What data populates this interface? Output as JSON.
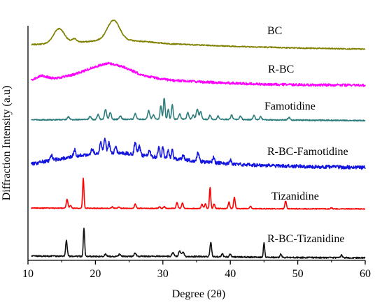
{
  "chart_data": {
    "type": "line",
    "xlabel": "Degree (2θ)",
    "ylabel": "Diffraction Intensity (a.u)",
    "xlim": [
      10,
      60
    ],
    "xticks": [
      10,
      20,
      30,
      40,
      50,
      60
    ],
    "grid": false,
    "series": [
      {
        "name": "BC",
        "color": "#808000",
        "baseline": 0.5,
        "background": [
          [
            10.5,
            2.0
          ],
          [
            14,
            2.6
          ],
          [
            19,
            3.4
          ],
          [
            22,
            4.5
          ],
          [
            26,
            3.7
          ],
          [
            31,
            2.4
          ],
          [
            40,
            1.3
          ],
          [
            50,
            0.5
          ],
          [
            60,
            0.0
          ]
        ],
        "peaks": [
          [
            14.6,
            6.5,
            0.8
          ],
          [
            16.9,
            1.5,
            0.35
          ],
          [
            22.7,
            8.5,
            0.9
          ]
        ],
        "noise": 0.25
      },
      {
        "name": "R-BC",
        "color": "#ff00ff",
        "baseline": 0.0,
        "background": [
          [
            10.5,
            3.0
          ],
          [
            12,
            4.8
          ],
          [
            14,
            3.6
          ],
          [
            17,
            5.5
          ],
          [
            20,
            9.0
          ],
          [
            22,
            10.5
          ],
          [
            24,
            9.0
          ],
          [
            27,
            5.0
          ],
          [
            31,
            2.8
          ],
          [
            38,
            1.8
          ],
          [
            45,
            1.0
          ],
          [
            52,
            0.7
          ],
          [
            60,
            0.6
          ]
        ],
        "peaks": [],
        "noise": 0.55
      },
      {
        "name": "Famotidine",
        "color": "#2e7d7d",
        "baseline": 0.0,
        "background": [
          [
            10.5,
            0.7
          ],
          [
            20,
            0.9
          ],
          [
            30,
            1.0
          ],
          [
            40,
            0.9
          ],
          [
            50,
            0.6
          ],
          [
            60,
            0.4
          ]
        ],
        "peaks": [
          [
            16.0,
            1.2,
            0.15
          ],
          [
            19.2,
            1.3,
            0.15
          ],
          [
            20.4,
            2.2,
            0.15
          ],
          [
            21.5,
            4.5,
            0.15
          ],
          [
            22.2,
            3.0,
            0.15
          ],
          [
            23.7,
            1.5,
            0.15
          ],
          [
            25.9,
            2.5,
            0.15
          ],
          [
            27.9,
            3.8,
            0.15
          ],
          [
            28.6,
            2.0,
            0.15
          ],
          [
            29.7,
            6.0,
            0.12
          ],
          [
            30.2,
            9.5,
            0.12
          ],
          [
            30.8,
            4.5,
            0.12
          ],
          [
            31.4,
            6.5,
            0.12
          ],
          [
            32.5,
            2.5,
            0.15
          ],
          [
            33.7,
            3.0,
            0.15
          ],
          [
            34.5,
            1.8,
            0.15
          ],
          [
            35.1,
            4.5,
            0.15
          ],
          [
            35.6,
            3.5,
            0.15
          ],
          [
            37.0,
            1.8,
            0.15
          ],
          [
            38.2,
            1.5,
            0.15
          ],
          [
            40.2,
            1.9,
            0.15
          ],
          [
            41.5,
            1.5,
            0.15
          ],
          [
            43.5,
            1.9,
            0.15
          ],
          [
            44.5,
            1.4,
            0.15
          ],
          [
            48.7,
            1.2,
            0.15
          ]
        ],
        "noise": 0.25
      },
      {
        "name": "R-BC-Famotidine",
        "color": "#1515e0",
        "baseline": 0.0,
        "background": [
          [
            10.5,
            1.5
          ],
          [
            12,
            2.5
          ],
          [
            16,
            4.5
          ],
          [
            20,
            6.5
          ],
          [
            24,
            6.5
          ],
          [
            28,
            5.0
          ],
          [
            32,
            3.8
          ],
          [
            38,
            2.0
          ],
          [
            45,
            0.9
          ],
          [
            50,
            0.5
          ],
          [
            60,
            0.0
          ]
        ],
        "peaks": [
          [
            13.5,
            2.0,
            0.15
          ],
          [
            16.9,
            3.0,
            0.15
          ],
          [
            19.5,
            2.0,
            0.15
          ],
          [
            20.8,
            5.0,
            0.15
          ],
          [
            21.4,
            6.5,
            0.15
          ],
          [
            22.0,
            4.5,
            0.15
          ],
          [
            23.0,
            2.5,
            0.15
          ],
          [
            25.9,
            5.5,
            0.15
          ],
          [
            26.5,
            4.0,
            0.15
          ],
          [
            28.0,
            3.0,
            0.15
          ],
          [
            29.4,
            4.5,
            0.15
          ],
          [
            30.0,
            5.0,
            0.12
          ],
          [
            30.8,
            4.0,
            0.12
          ],
          [
            31.4,
            4.5,
            0.12
          ],
          [
            33.0,
            2.0,
            0.15
          ],
          [
            35.2,
            3.8,
            0.15
          ],
          [
            37.5,
            2.2,
            0.15
          ],
          [
            40.0,
            1.5,
            0.15
          ]
        ],
        "noise": 0.8
      },
      {
        "name": "Tizanidine",
        "color": "#ff0000",
        "baseline": 0.0,
        "background": [
          [
            10.5,
            0.6
          ],
          [
            20,
            0.5
          ],
          [
            30,
            0.45
          ],
          [
            40,
            0.35
          ],
          [
            50,
            0.25
          ],
          [
            60,
            0.2
          ]
        ],
        "peaks": [
          [
            15.8,
            4.0,
            0.12
          ],
          [
            16.3,
            1.2,
            0.12
          ],
          [
            18.2,
            13.5,
            0.1
          ],
          [
            22.5,
            0.7,
            0.12
          ],
          [
            23.5,
            0.6,
            0.12
          ],
          [
            25.9,
            2.0,
            0.12
          ],
          [
            29.5,
            0.8,
            0.12
          ],
          [
            30.2,
            0.8,
            0.12
          ],
          [
            32.1,
            2.7,
            0.12
          ],
          [
            32.9,
            2.5,
            0.12
          ],
          [
            35.8,
            2.0,
            0.12
          ],
          [
            36.3,
            2.2,
            0.12
          ],
          [
            37.0,
            9.5,
            0.1
          ],
          [
            37.6,
            2.0,
            0.12
          ],
          [
            39.8,
            3.0,
            0.12
          ],
          [
            40.6,
            5.0,
            0.12
          ],
          [
            43.0,
            1.0,
            0.12
          ],
          [
            48.2,
            3.5,
            0.12
          ],
          [
            55.0,
            0.6,
            0.12
          ]
        ],
        "noise": 0.18
      },
      {
        "name": "R-BC-Tizanidine",
        "color": "#111111",
        "baseline": 0.0,
        "background": [
          [
            10.5,
            1.0
          ],
          [
            20,
            0.8
          ],
          [
            30,
            0.9
          ],
          [
            40,
            0.6
          ],
          [
            50,
            0.3
          ],
          [
            60,
            0.2
          ]
        ],
        "peaks": [
          [
            15.7,
            7.0,
            0.12
          ],
          [
            18.3,
            12.5,
            0.1
          ],
          [
            21.5,
            1.0,
            0.15
          ],
          [
            23.6,
            1.0,
            0.15
          ],
          [
            25.9,
            1.5,
            0.15
          ],
          [
            31.5,
            1.5,
            0.15
          ],
          [
            32.5,
            2.5,
            0.15
          ],
          [
            33.0,
            2.0,
            0.15
          ],
          [
            37.1,
            6.5,
            0.12
          ],
          [
            38.8,
            1.5,
            0.12
          ],
          [
            40.0,
            1.5,
            0.12
          ],
          [
            45.0,
            6.5,
            0.1
          ],
          [
            47.5,
            1.5,
            0.12
          ],
          [
            56.5,
            1.2,
            0.12
          ]
        ],
        "noise": 0.3
      }
    ]
  }
}
